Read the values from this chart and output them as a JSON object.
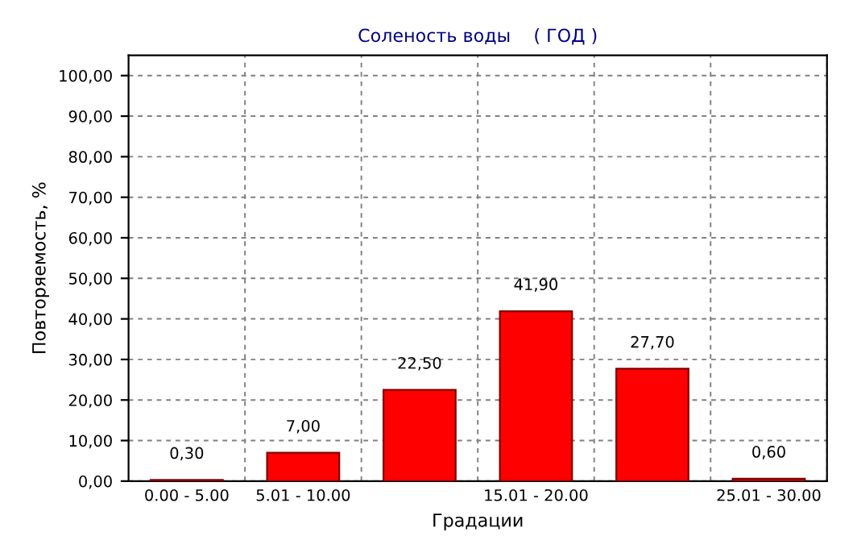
{
  "chart_data": {
    "type": "bar",
    "title": "Соленость воды    ( ГОД )",
    "xlabel": "Градации",
    "ylabel": "Повторяемость, %",
    "categories": [
      "0.00 - 5.00",
      "5.01 - 10.00",
      null,
      "15.01 - 20.00",
      null,
      "25.01 - 30.00"
    ],
    "values": [
      0.3,
      7.0,
      22.5,
      41.9,
      27.7,
      0.6
    ],
    "value_labels": [
      "0,30",
      "7,00",
      "22,50",
      "41,90",
      "27,70",
      "0,60"
    ],
    "color": "#ff0000",
    "ylim": [
      0,
      105
    ],
    "yticks": [
      {
        "value": 0,
        "label": "0,00"
      },
      {
        "value": 10,
        "label": "10,00"
      },
      {
        "value": 20,
        "label": "20,00"
      },
      {
        "value": 30,
        "label": "30,00"
      },
      {
        "value": 40,
        "label": "40,00"
      },
      {
        "value": 50,
        "label": "50,00"
      },
      {
        "value": 60,
        "label": "60,00"
      },
      {
        "value": 70,
        "label": "70,00"
      },
      {
        "value": 80,
        "label": "80,00"
      },
      {
        "value": 90,
        "label": "90,00"
      },
      {
        "value": 100,
        "label": "100,00"
      }
    ],
    "grid": true
  }
}
